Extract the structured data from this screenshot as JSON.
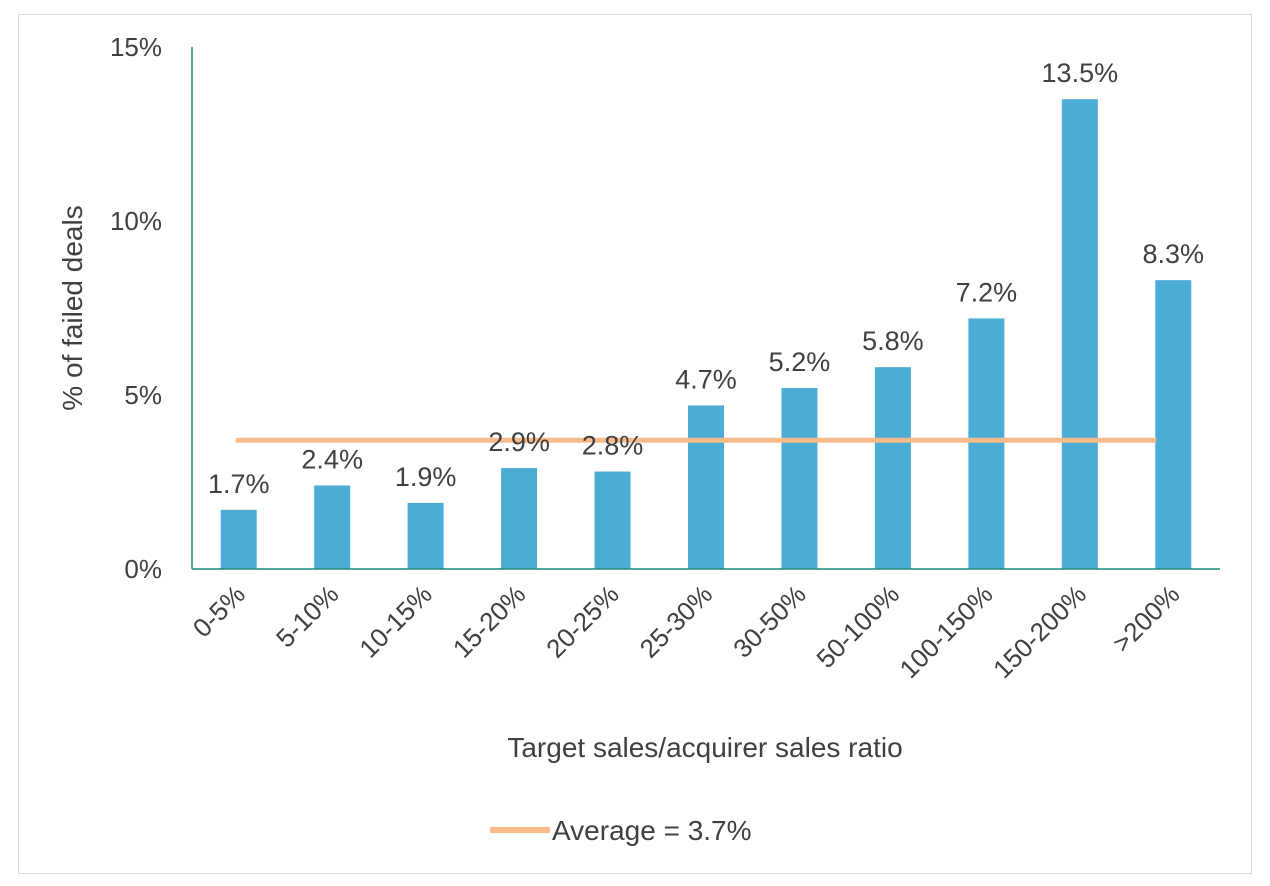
{
  "chart_data": {
    "type": "bar",
    "title": "",
    "xlabel": "Target sales/acquirer sales ratio",
    "ylabel": "% of failed deals",
    "categories": [
      "0-5%",
      "5-10%",
      "10-15%",
      "15-20%",
      "20-25%",
      "25-30%",
      "30-50%",
      "50-100%",
      "100-150%",
      "150-200%",
      ">200%"
    ],
    "values": [
      1.7,
      2.4,
      1.9,
      2.9,
      2.8,
      4.7,
      5.2,
      5.8,
      7.2,
      13.5,
      8.3
    ],
    "data_labels": [
      "1.7%",
      "2.4%",
      "1.9%",
      "2.9%",
      "2.8%",
      "4.7%",
      "5.2%",
      "5.8%",
      "7.2%",
      "13.5%",
      "8.3%"
    ],
    "ylim": [
      0,
      15
    ],
    "yticks": [
      0,
      5,
      10,
      15
    ],
    "ytick_labels": [
      "0%",
      "5%",
      "10%",
      "15%"
    ],
    "grid": false,
    "reference_line": {
      "value": 3.7,
      "label": "Average = 3.7%"
    },
    "legend": {
      "position": "bottom",
      "entries": [
        "Average = 3.7%"
      ]
    },
    "colors": {
      "bar": "#4bacd6",
      "average_line": "#f9bb8a",
      "axis": "#1a8a7a",
      "text": "#404040"
    }
  }
}
